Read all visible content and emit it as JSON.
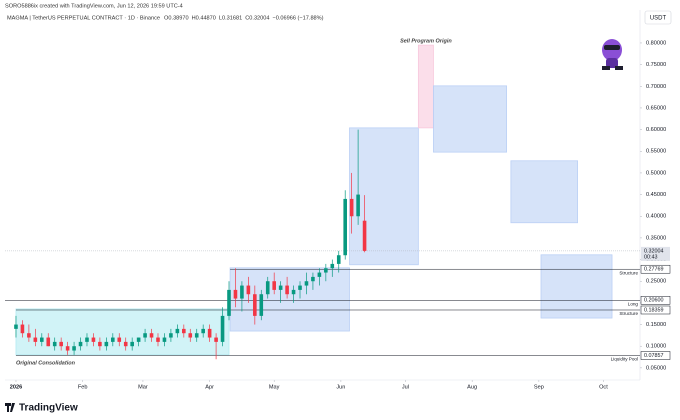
{
  "header": {
    "author": "SORO5886ix created with TradingView.com, Jun 12, 2026 19:59 UTC-4",
    "symbol": "MAGMA | TetherUS PERPETUAL CONTRACT · 1D · Binance",
    "ohlc": [
      "O0.38970",
      "H0.44870",
      "L0.31681",
      "C0.32004",
      "−0.06966 (−17.88%)"
    ],
    "currency": "USDT"
  },
  "footer": {
    "brand": "TradingView"
  },
  "chart_data": {
    "type": "candlestick",
    "up_color": "#089981",
    "down_color": "#f23645",
    "grid": false,
    "x": [
      0,
      3,
      6,
      9,
      12,
      15,
      18,
      21,
      24,
      27,
      30,
      33,
      36,
      39,
      42,
      45,
      48,
      51,
      54,
      57,
      60,
      63,
      66,
      69,
      72,
      75,
      78,
      81,
      84,
      87,
      90,
      93,
      96,
      99,
      102,
      105,
      108,
      111,
      114,
      117,
      120,
      123,
      126,
      129,
      132,
      135,
      138,
      141,
      144,
      147,
      150,
      153,
      156,
      159,
      162
    ],
    "open": [
      0.14,
      0.15,
      0.13,
      0.12,
      0.11,
      0.12,
      0.1,
      0.11,
      0.1,
      0.09,
      0.1,
      0.11,
      0.12,
      0.11,
      0.1,
      0.11,
      0.12,
      0.11,
      0.1,
      0.11,
      0.12,
      0.13,
      0.12,
      0.11,
      0.12,
      0.13,
      0.14,
      0.13,
      0.12,
      0.13,
      0.14,
      0.12,
      0.11,
      0.17,
      0.23,
      0.21,
      0.24,
      0.22,
      0.17,
      0.22,
      0.25,
      0.23,
      0.24,
      0.22,
      0.23,
      0.24,
      0.25,
      0.26,
      0.27,
      0.28,
      0.29,
      0.31,
      0.44,
      0.4,
      0.3897
    ],
    "high": [
      0.17,
      0.16,
      0.15,
      0.14,
      0.13,
      0.13,
      0.12,
      0.12,
      0.11,
      0.11,
      0.12,
      0.13,
      0.13,
      0.12,
      0.12,
      0.13,
      0.13,
      0.12,
      0.12,
      0.12,
      0.14,
      0.14,
      0.13,
      0.13,
      0.14,
      0.15,
      0.15,
      0.14,
      0.14,
      0.15,
      0.15,
      0.13,
      0.19,
      0.25,
      0.28,
      0.25,
      0.26,
      0.24,
      0.23,
      0.26,
      0.27,
      0.25,
      0.26,
      0.24,
      0.25,
      0.27,
      0.27,
      0.28,
      0.29,
      0.3,
      0.32,
      0.46,
      0.5,
      0.6,
      0.4487
    ],
    "low": [
      0.12,
      0.12,
      0.11,
      0.1,
      0.1,
      0.1,
      0.09,
      0.09,
      0.08,
      0.08,
      0.09,
      0.1,
      0.1,
      0.09,
      0.09,
      0.1,
      0.1,
      0.09,
      0.09,
      0.1,
      0.11,
      0.11,
      0.1,
      0.1,
      0.11,
      0.12,
      0.12,
      0.11,
      0.11,
      0.12,
      0.11,
      0.07,
      0.1,
      0.16,
      0.19,
      0.18,
      0.2,
      0.15,
      0.16,
      0.21,
      0.22,
      0.2,
      0.21,
      0.2,
      0.21,
      0.22,
      0.23,
      0.24,
      0.25,
      0.26,
      0.27,
      0.3,
      0.36,
      0.38,
      0.31681
    ],
    "close": [
      0.15,
      0.13,
      0.12,
      0.11,
      0.12,
      0.1,
      0.11,
      0.1,
      0.09,
      0.1,
      0.11,
      0.12,
      0.11,
      0.1,
      0.11,
      0.12,
      0.11,
      0.1,
      0.11,
      0.12,
      0.13,
      0.12,
      0.11,
      0.12,
      0.13,
      0.14,
      0.13,
      0.12,
      0.13,
      0.14,
      0.12,
      0.11,
      0.17,
      0.23,
      0.21,
      0.24,
      0.22,
      0.17,
      0.22,
      0.25,
      0.23,
      0.24,
      0.22,
      0.23,
      0.24,
      0.25,
      0.26,
      0.27,
      0.28,
      0.29,
      0.31,
      0.44,
      0.4,
      0.45,
      0.32004
    ],
    "xlim": [
      -5.1,
      290
    ],
    "xticks": [
      {
        "value": 0,
        "label": "2026"
      },
      {
        "value": 31,
        "label": "Feb"
      },
      {
        "value": 59,
        "label": "Mar"
      },
      {
        "value": 90,
        "label": "Apr"
      },
      {
        "value": 120,
        "label": "May"
      },
      {
        "value": 151,
        "label": "Jun"
      },
      {
        "value": 181,
        "label": "Jul"
      },
      {
        "value": 212,
        "label": "Aug"
      },
      {
        "value": 243,
        "label": "Sep"
      },
      {
        "value": 273,
        "label": "Oct"
      }
    ],
    "ylim": [
      0.022,
      0.853
    ],
    "yticks": [
      {
        "value": 0.05,
        "label": "0.05000"
      },
      {
        "value": 0.1,
        "label": "0.10000"
      },
      {
        "value": 0.15,
        "label": "0.15000"
      },
      {
        "value": 0.2,
        "label": "0.20000"
      },
      {
        "value": 0.25,
        "label": "0.25000"
      },
      {
        "value": 0.3,
        "label": "0.30000"
      },
      {
        "value": 0.35,
        "label": "0.35000"
      },
      {
        "value": 0.4,
        "label": "0.40000"
      },
      {
        "value": 0.45,
        "label": "0.45000"
      },
      {
        "value": 0.5,
        "label": "0.50000"
      },
      {
        "value": 0.55,
        "label": "0.55000"
      },
      {
        "value": 0.6,
        "label": "0.60000"
      },
      {
        "value": 0.65,
        "label": "0.65000"
      },
      {
        "value": 0.7,
        "label": "0.70000"
      },
      {
        "value": 0.75,
        "label": "0.75000"
      },
      {
        "value": 0.8,
        "label": "0.80000"
      }
    ],
    "zones": [
      {
        "x0": 0,
        "x1": 99,
        "y0": 0.08,
        "y1": 0.186,
        "color": "#b2ebf2",
        "label": "Original Consolidation",
        "label_position": "bottom"
      },
      {
        "x0": 99.5,
        "x1": 155,
        "y0": 0.135,
        "y1": 0.281,
        "color": "#bbd0f5"
      },
      {
        "x0": 155,
        "x1": 187,
        "y0": 0.288,
        "y1": 0.604,
        "color": "#bbd0f5"
      },
      {
        "x0": 187,
        "x1": 194,
        "y0": 0.604,
        "y1": 0.795,
        "color": "#f8c8dc",
        "label": "Sell Program Origin",
        "label_position": "top"
      },
      {
        "x0": 194,
        "x1": 228,
        "y0": 0.548,
        "y1": 0.701,
        "color": "#bbd0f5"
      },
      {
        "x0": 230,
        "x1": 261,
        "y0": 0.385,
        "y1": 0.528,
        "color": "#bbd0f5"
      },
      {
        "x0": 244,
        "x1": 277,
        "y0": 0.165,
        "y1": 0.311,
        "color": "#bbd0f5"
      }
    ],
    "levels": [
      {
        "name": "Structure",
        "value": 0.27769,
        "x0": 99.5
      },
      {
        "name": "Long",
        "value": 0.206,
        "value_label": "0.20600",
        "x0": -5.1
      },
      {
        "name": "Structure",
        "value": 0.18359,
        "x0": 0
      },
      {
        "name": "Liquidity Pool",
        "value": 0.07857,
        "x0": 0
      }
    ],
    "last_price": {
      "value": 0.32004,
      "countdown": "00:43"
    }
  }
}
